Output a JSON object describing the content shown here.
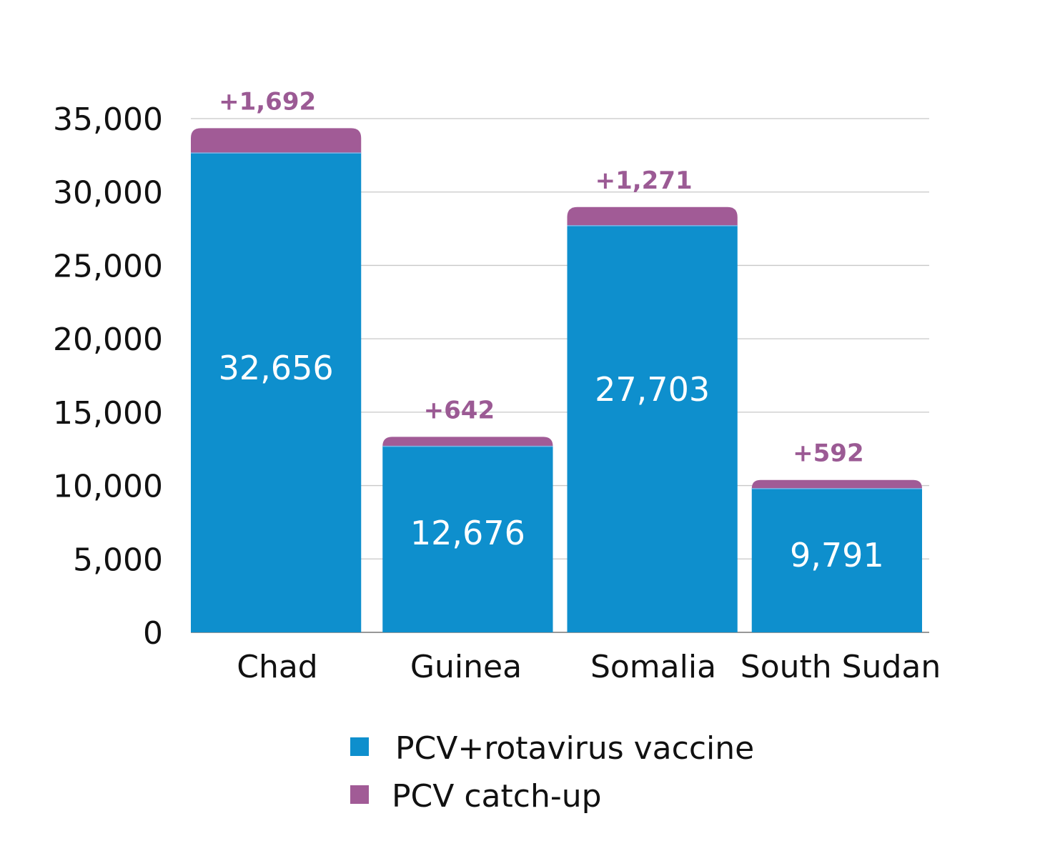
{
  "chart_data": {
    "type": "bar",
    "stacked": true,
    "title": "",
    "xlabel": "",
    "ylabel": "",
    "categories": [
      "Chad",
      "Guinea",
      "Somalia",
      "South Sudan"
    ],
    "series": [
      {
        "name": "PCV+rotavirus vaccine",
        "color": "#0e8fcd",
        "values": [
          32656,
          12676,
          27703,
          9791
        ],
        "labels": [
          "32,656",
          "12,676",
          "27,703",
          "9,791"
        ]
      },
      {
        "name": "PCV catch-up",
        "color": "#a15b96",
        "values": [
          1692,
          642,
          1271,
          592
        ],
        "labels": [
          "+1,692",
          "+642",
          "+1,271",
          "+592"
        ]
      }
    ],
    "ylim": [
      0,
      35000
    ],
    "yticks": [
      0,
      5000,
      10000,
      15000,
      20000,
      25000,
      30000,
      35000
    ],
    "ytick_labels": [
      "0",
      "5,000",
      "10,000",
      "15,000",
      "20,000",
      "25,000",
      "30,000",
      "35,000"
    ],
    "grid": true,
    "legend_position": "bottom"
  }
}
